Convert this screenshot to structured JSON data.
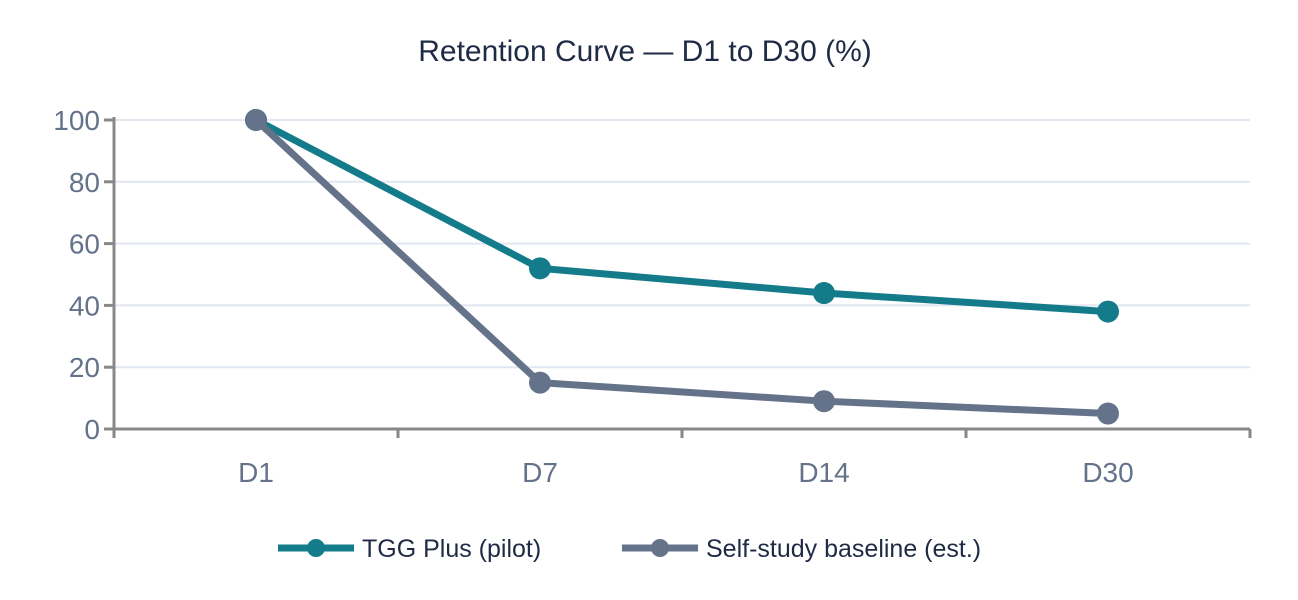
{
  "chart_data": {
    "type": "line",
    "title": "Retention Curve — D1 to D30 (%)",
    "xlabel": "",
    "ylabel": "",
    "categories": [
      "D1",
      "D7",
      "D14",
      "D30"
    ],
    "ylim": [
      0,
      100
    ],
    "yticks": [
      0,
      20,
      40,
      60,
      80,
      100
    ],
    "grid": true,
    "legend_position": "bottom",
    "series": [
      {
        "name": "TGG Plus (pilot)",
        "values": [
          100,
          52,
          44,
          38
        ],
        "color": "#137B8A"
      },
      {
        "name": "Self-study baseline (est.)",
        "values": [
          100,
          15,
          9,
          5
        ],
        "color": "#64728A"
      }
    ]
  }
}
